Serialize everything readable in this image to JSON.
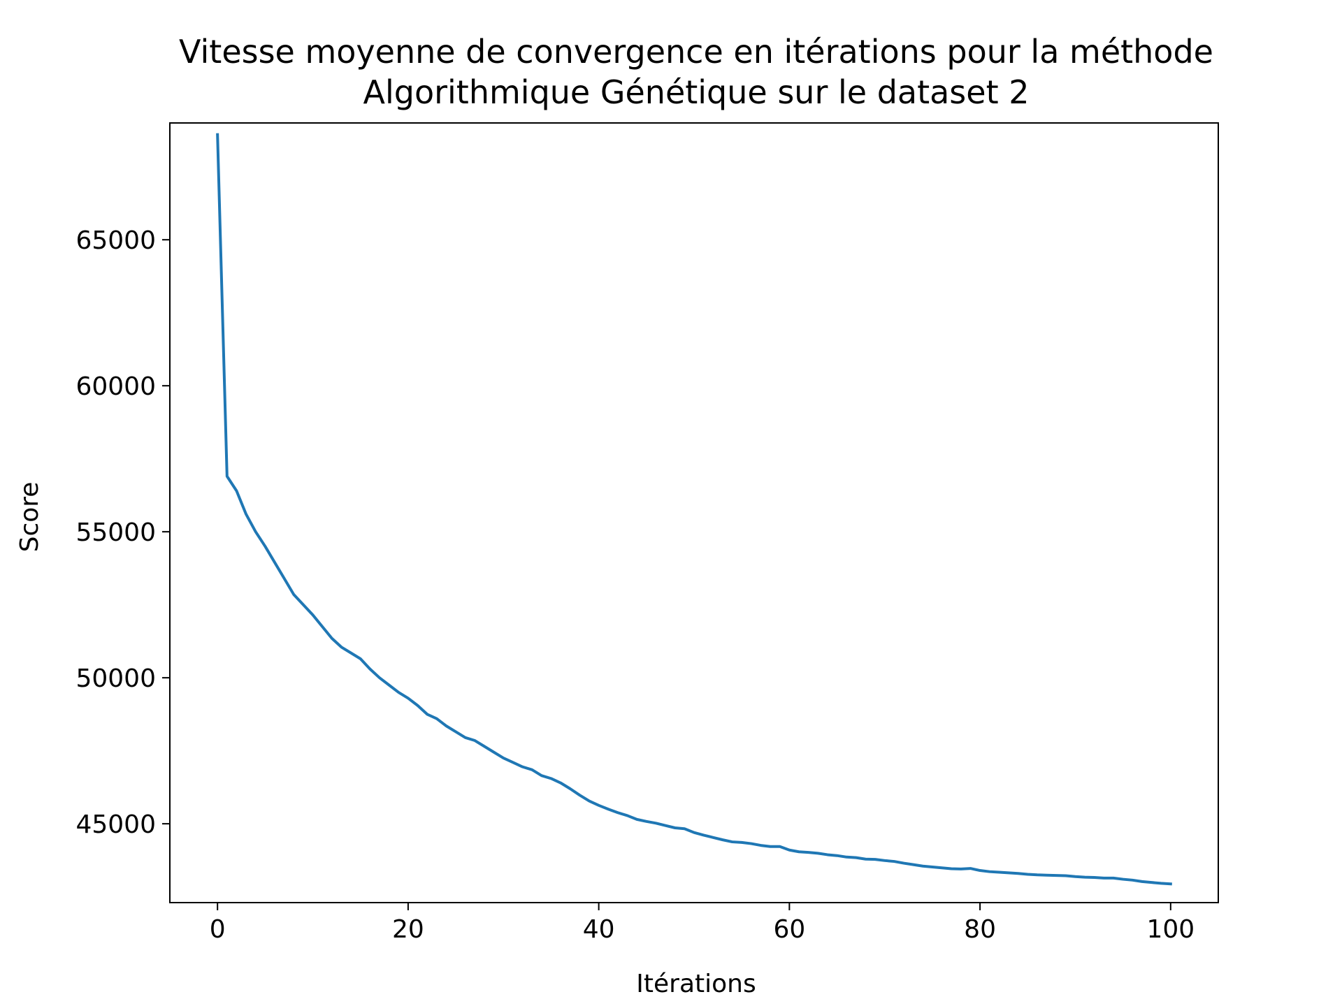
{
  "chart_data": {
    "type": "line",
    "title": "Vitesse moyenne de convergence en itérations pour la méthode\nAlgorithmique Génétique sur le dataset 2",
    "title_lines": [
      "Vitesse moyenne de convergence en itérations pour la méthode",
      "Algorithmique Génétique sur le dataset 2"
    ],
    "xlabel": "Itérations",
    "ylabel": "Score",
    "xlim": [
      -5,
      105
    ],
    "ylim": [
      42300,
      69000
    ],
    "xticks": [
      0,
      20,
      40,
      60,
      80,
      100
    ],
    "yticks": [
      45000,
      50000,
      55000,
      60000,
      65000
    ],
    "xtick_labels": [
      "0",
      "20",
      "40",
      "60",
      "80",
      "100"
    ],
    "ytick_labels": [
      "45000",
      "50000",
      "55000",
      "60000",
      "65000"
    ],
    "grid": false,
    "legend": null,
    "series": [
      {
        "color": "#1f77b4",
        "x": [
          0,
          1,
          2,
          3,
          4,
          5,
          6,
          7,
          8,
          9,
          10,
          11,
          12,
          13,
          14,
          15,
          16,
          17,
          18,
          19,
          20,
          21,
          22,
          23,
          24,
          25,
          26,
          27,
          28,
          29,
          30,
          31,
          32,
          33,
          34,
          35,
          36,
          37,
          38,
          39,
          40,
          41,
          42,
          43,
          44,
          45,
          46,
          47,
          48,
          49,
          50,
          51,
          52,
          53,
          54,
          55,
          56,
          57,
          58,
          59,
          60,
          61,
          62,
          63,
          64,
          65,
          66,
          67,
          68,
          69,
          70,
          71,
          72,
          73,
          74,
          75,
          76,
          77,
          78,
          79,
          80,
          81,
          82,
          83,
          84,
          85,
          86,
          87,
          88,
          89,
          90,
          91,
          92,
          93,
          94,
          95,
          96,
          97,
          98,
          99,
          100
        ],
        "values": [
          68600,
          56900,
          56400,
          55600,
          55000,
          54500,
          53950,
          53400,
          52850,
          52500,
          52150,
          51750,
          51350,
          51050,
          50850,
          50650,
          50300,
          50000,
          49750,
          49500,
          49300,
          49050,
          48750,
          48600,
          48350,
          48150,
          47950,
          47850,
          47650,
          47450,
          47250,
          47100,
          46950,
          46850,
          46650,
          46550,
          46400,
          46200,
          45980,
          45780,
          45630,
          45500,
          45380,
          45280,
          45150,
          45080,
          45020,
          44940,
          44860,
          44830,
          44700,
          44610,
          44530,
          44450,
          44380,
          44360,
          44320,
          44260,
          44220,
          44220,
          44100,
          44040,
          44020,
          43990,
          43940,
          43910,
          43860,
          43840,
          43790,
          43780,
          43740,
          43710,
          43650,
          43600,
          43550,
          43520,
          43490,
          43460,
          43450,
          43470,
          43400,
          43360,
          43340,
          43320,
          43300,
          43270,
          43250,
          43240,
          43230,
          43220,
          43190,
          43170,
          43160,
          43140,
          43140,
          43100,
          43070,
          43020,
          42990,
          42960,
          42940
        ]
      }
    ]
  }
}
